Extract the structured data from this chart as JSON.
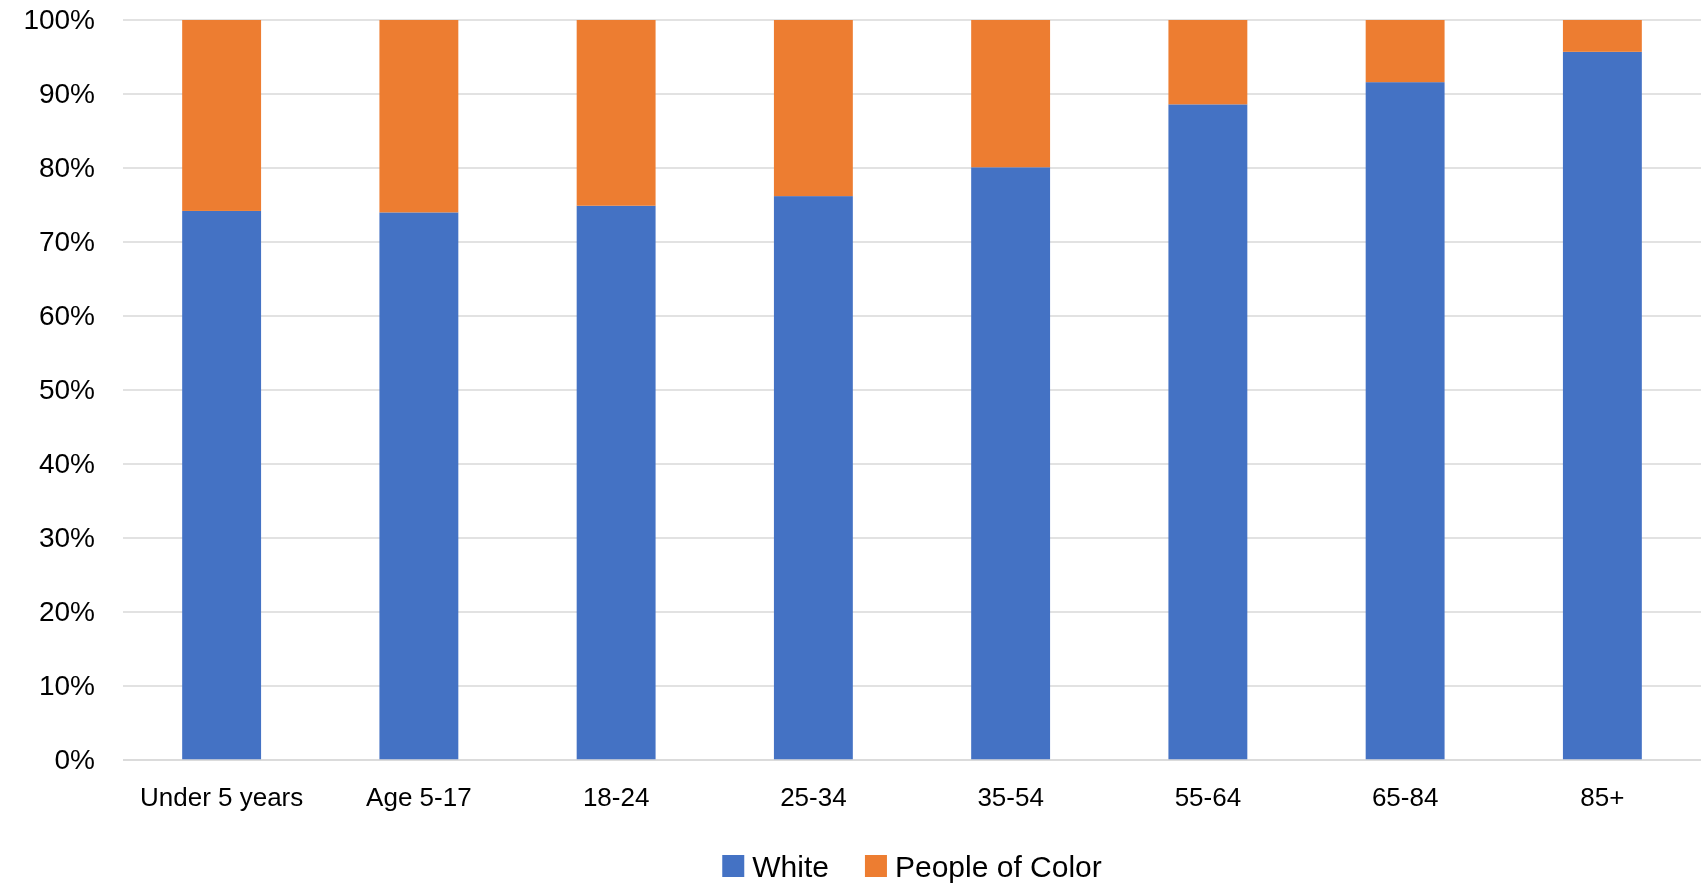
{
  "chart_data": {
    "type": "bar",
    "stacked": true,
    "categories": [
      "Under 5 years",
      "Age 5-17",
      "18-24",
      "25-34",
      "35-54",
      "55-64",
      "65-84",
      "85+"
    ],
    "series": [
      {
        "name": "White",
        "color": "#4472c4",
        "values": [
          74.2,
          74.0,
          74.9,
          76.2,
          80.1,
          88.6,
          91.6,
          95.7
        ]
      },
      {
        "name": "People of Color",
        "color": "#ed7d31",
        "values": [
          25.8,
          26.0,
          25.1,
          23.8,
          19.9,
          11.4,
          8.4,
          4.3
        ]
      }
    ],
    "ylim": [
      0,
      100
    ],
    "yticks": [
      {
        "value": 0,
        "label": "0%"
      },
      {
        "value": 10,
        "label": "10%"
      },
      {
        "value": 20,
        "label": "20%"
      },
      {
        "value": 30,
        "label": "30%"
      },
      {
        "value": 40,
        "label": "40%"
      },
      {
        "value": 50,
        "label": "50%"
      },
      {
        "value": 60,
        "label": "60%"
      },
      {
        "value": 70,
        "label": "70%"
      },
      {
        "value": 80,
        "label": "80%"
      },
      {
        "value": 90,
        "label": "90%"
      },
      {
        "value": 100,
        "label": "100%"
      }
    ],
    "grid": "y",
    "legend": "bottom"
  }
}
